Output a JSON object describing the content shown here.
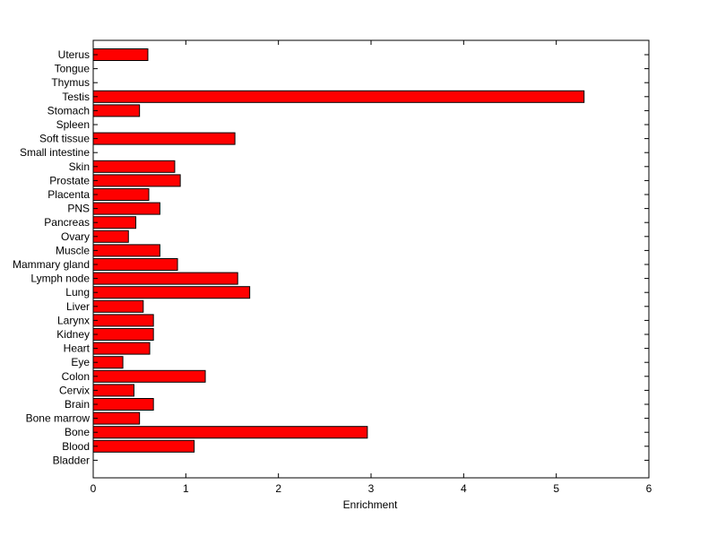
{
  "chart_data": {
    "type": "bar",
    "orientation": "horizontal",
    "xlabel": "Enrichment",
    "ylabel": "",
    "xlim": [
      0,
      6
    ],
    "xticks": [
      "0",
      "1",
      "2",
      "3",
      "4",
      "5",
      "6"
    ],
    "grid": false,
    "legend": "none",
    "bar_color": "#ff0000",
    "categories": [
      "Uterus",
      "Tongue",
      "Thymus",
      "Testis",
      "Stomach",
      "Spleen",
      "Soft tissue",
      "Small intestine",
      "Skin",
      "Prostate",
      "Placenta",
      "PNS",
      "Pancreas",
      "Ovary",
      "Muscle",
      "Mammary gland",
      "Lymph node",
      "Lung",
      "Liver",
      "Larynx",
      "Kidney",
      "Heart",
      "Eye",
      "Colon",
      "Cervix",
      "Brain",
      "Bone marrow",
      "Bone",
      "Blood",
      "Bladder"
    ],
    "values": [
      0.59,
      0,
      0,
      5.3,
      0.5,
      0,
      1.53,
      0,
      0.88,
      0.94,
      0.6,
      0.72,
      0.46,
      0.38,
      0.72,
      0.91,
      1.56,
      1.69,
      0.54,
      0.65,
      0.65,
      0.61,
      0.32,
      1.21,
      0.44,
      0.65,
      0.5,
      2.96,
      1.09,
      0
    ]
  }
}
